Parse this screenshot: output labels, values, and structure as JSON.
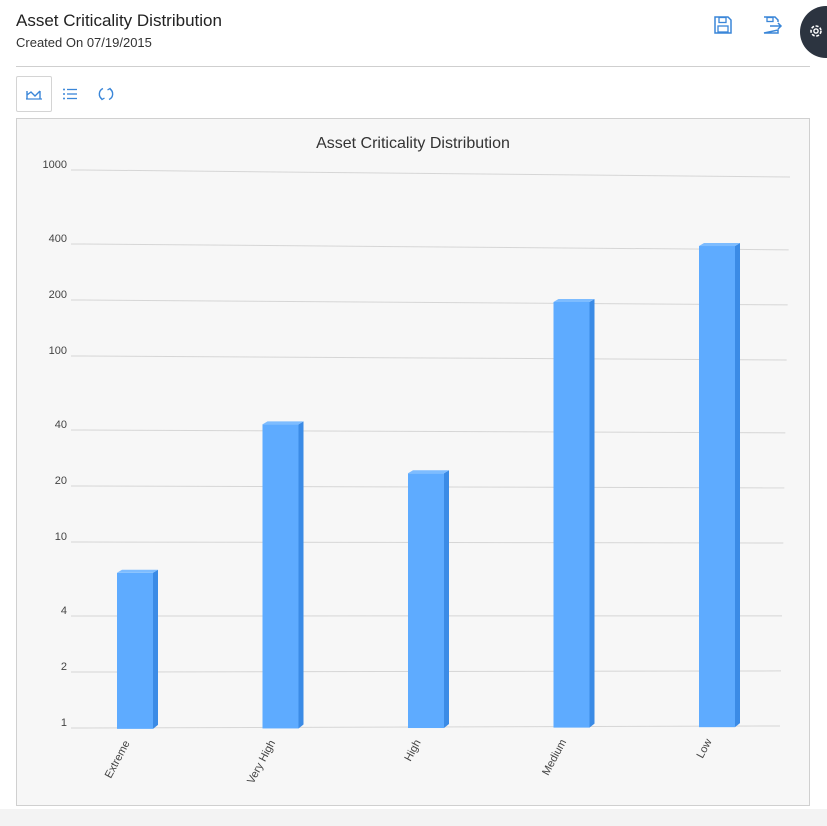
{
  "header": {
    "title": "Asset Criticality Distribution",
    "subtitle": "Created On 07/19/2015"
  },
  "icons": {
    "save": "save-icon",
    "save_as": "save-as-icon",
    "settings": "gear-icon",
    "chart_view": "chart-view-icon",
    "list_view": "list-view-icon",
    "refresh": "refresh-icon"
  },
  "colors": {
    "accent": "#3a86d8",
    "bar_front": "#5eabff",
    "bar_side": "#3b8be6",
    "bar_top": "#7dbcff",
    "gridline": "#d6d6d6",
    "settings_bg": "#2c3440"
  },
  "chart_data": {
    "type": "bar",
    "title": "Asset Criticality Distribution",
    "xlabel": "",
    "ylabel": "",
    "yscale": "log",
    "ylim": [
      1,
      1000
    ],
    "yticks": [
      1,
      2,
      4,
      10,
      20,
      40,
      100,
      200,
      400,
      1000
    ],
    "grid": true,
    "categories": [
      "Extreme",
      "Very High",
      "High",
      "Medium",
      "Low"
    ],
    "values": [
      7,
      44,
      24,
      200,
      400
    ]
  }
}
